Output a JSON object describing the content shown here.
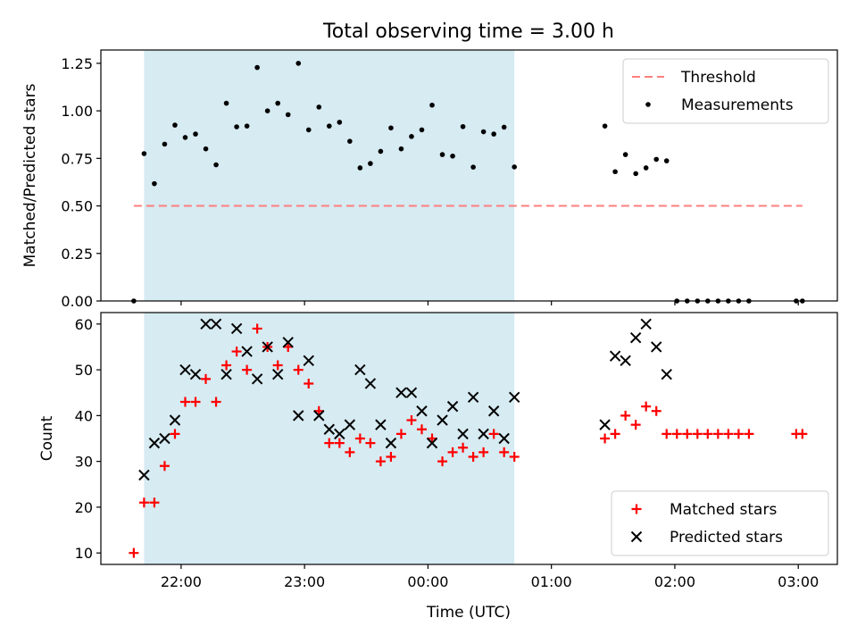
{
  "figure": {
    "title": "Total observing time = 3.00 h",
    "xlabel": "Time (UTC)",
    "x_ticks": [
      "22:00",
      "23:00",
      "00:00",
      "01:00",
      "02:00",
      "03:00"
    ],
    "x_tick_minutes": [
      0,
      60,
      120,
      180,
      240,
      300
    ],
    "x_range_minutes": [
      -39,
      319
    ],
    "shaded_span_minutes": [
      -18,
      162
    ],
    "shade_color": "#add8e6"
  },
  "chart_data": [
    {
      "type": "scatter",
      "ylabel": "Matched/Predicted stars",
      "ylim": [
        0,
        1.32
      ],
      "y_ticks": [
        0.0,
        0.25,
        0.5,
        0.75,
        1.0,
        1.25
      ],
      "y_tick_labels": [
        "0.00",
        "0.25",
        "0.50",
        "0.75",
        "1.00",
        "1.25"
      ],
      "grid": false,
      "legend_placement": "top-right",
      "threshold": {
        "name": "Threshold",
        "y": 0.5,
        "x_from": -23,
        "x_to": 302,
        "color": "#ff7f7f"
      },
      "series": [
        {
          "name": "Measurements",
          "color": "#000000",
          "points": [
            [
              -23,
              0.0
            ],
            [
              -18,
              0.775
            ],
            [
              -13,
              0.617
            ],
            [
              -8,
              0.825
            ],
            [
              -3,
              0.925
            ],
            [
              2,
              0.86
            ],
            [
              7,
              0.878
            ],
            [
              12,
              0.8
            ],
            [
              17,
              0.716
            ],
            [
              22,
              1.04
            ],
            [
              27,
              0.916
            ],
            [
              32,
              0.92
            ],
            [
              37,
              1.228
            ],
            [
              42,
              1.0
            ],
            [
              47,
              1.04
            ],
            [
              52,
              0.98
            ],
            [
              57,
              1.25
            ],
            [
              62,
              0.9
            ],
            [
              67,
              1.02
            ],
            [
              72,
              0.92
            ],
            [
              77,
              0.94
            ],
            [
              82,
              0.84
            ],
            [
              87,
              0.7
            ],
            [
              92,
              0.723
            ],
            [
              97,
              0.787
            ],
            [
              102,
              0.91
            ],
            [
              107,
              0.8
            ],
            [
              112,
              0.865
            ],
            [
              117,
              0.9
            ],
            [
              122,
              1.03
            ],
            [
              127,
              0.77
            ],
            [
              132,
              0.762
            ],
            [
              137,
              0.917
            ],
            [
              142,
              0.704
            ],
            [
              147,
              0.89
            ],
            [
              152,
              0.878
            ],
            [
              157,
              0.914
            ],
            [
              162,
              0.705
            ],
            [
              206,
              0.92
            ],
            [
              211,
              0.68
            ],
            [
              216,
              0.77
            ],
            [
              221,
              0.67
            ],
            [
              226,
              0.7
            ],
            [
              231,
              0.745
            ],
            [
              236,
              0.737
            ],
            [
              241,
              0.0
            ],
            [
              246,
              0.0
            ],
            [
              251,
              0.0
            ],
            [
              256,
              0.0
            ],
            [
              261,
              0.0
            ],
            [
              266,
              0.0
            ],
            [
              271,
              0.0
            ],
            [
              276,
              0.0
            ],
            [
              299,
              0.0
            ],
            [
              302,
              0.0
            ]
          ]
        }
      ]
    },
    {
      "type": "scatter",
      "ylabel": "Count",
      "ylim": [
        7.5,
        62.5
      ],
      "y_ticks": [
        10,
        20,
        30,
        40,
        50,
        60
      ],
      "y_tick_labels": [
        "10",
        "20",
        "30",
        "40",
        "50",
        "60"
      ],
      "grid": false,
      "legend_placement": "bottom-right",
      "series": [
        {
          "name": "Matched stars",
          "marker": "plus",
          "color": "#ff0000",
          "points": [
            [
              -23,
              10
            ],
            [
              -18,
              21
            ],
            [
              -13,
              21
            ],
            [
              -8,
              29
            ],
            [
              -3,
              36
            ],
            [
              2,
              43
            ],
            [
              7,
              43
            ],
            [
              12,
              48
            ],
            [
              17,
              43
            ],
            [
              22,
              51
            ],
            [
              27,
              54
            ],
            [
              32,
              50
            ],
            [
              37,
              59
            ],
            [
              42,
              55
            ],
            [
              47,
              51
            ],
            [
              52,
              55
            ],
            [
              57,
              50
            ],
            [
              62,
              47
            ],
            [
              67,
              41
            ],
            [
              72,
              34
            ],
            [
              77,
              34
            ],
            [
              82,
              32
            ],
            [
              87,
              35
            ],
            [
              92,
              34
            ],
            [
              97,
              30
            ],
            [
              102,
              31
            ],
            [
              107,
              36
            ],
            [
              112,
              39
            ],
            [
              117,
              37
            ],
            [
              122,
              35
            ],
            [
              127,
              30
            ],
            [
              132,
              32
            ],
            [
              137,
              33
            ],
            [
              142,
              31
            ],
            [
              147,
              32
            ],
            [
              152,
              36
            ],
            [
              157,
              32
            ],
            [
              162,
              31
            ],
            [
              206,
              35
            ],
            [
              211,
              36
            ],
            [
              216,
              40
            ],
            [
              221,
              38
            ],
            [
              226,
              42
            ],
            [
              231,
              41
            ],
            [
              236,
              36
            ],
            [
              241,
              36
            ],
            [
              246,
              36
            ],
            [
              251,
              36
            ],
            [
              256,
              36
            ],
            [
              261,
              36
            ],
            [
              266,
              36
            ],
            [
              271,
              36
            ],
            [
              276,
              36
            ],
            [
              299,
              36
            ],
            [
              302,
              36
            ]
          ]
        },
        {
          "name": "Predicted stars",
          "marker": "x",
          "color": "#000000",
          "points": [
            [
              -18,
              27
            ],
            [
              -13,
              34
            ],
            [
              -8,
              35
            ],
            [
              -3,
              39
            ],
            [
              2,
              50
            ],
            [
              7,
              49
            ],
            [
              12,
              60
            ],
            [
              17,
              60
            ],
            [
              22,
              49
            ],
            [
              27,
              59
            ],
            [
              32,
              54
            ],
            [
              37,
              48
            ],
            [
              42,
              55
            ],
            [
              47,
              49
            ],
            [
              52,
              56
            ],
            [
              57,
              40
            ],
            [
              62,
              52
            ],
            [
              67,
              40
            ],
            [
              72,
              37
            ],
            [
              77,
              36
            ],
            [
              82,
              38
            ],
            [
              87,
              50
            ],
            [
              92,
              47
            ],
            [
              97,
              38
            ],
            [
              102,
              34
            ],
            [
              107,
              45
            ],
            [
              112,
              45
            ],
            [
              117,
              41
            ],
            [
              122,
              34
            ],
            [
              127,
              39
            ],
            [
              132,
              42
            ],
            [
              137,
              36
            ],
            [
              142,
              44
            ],
            [
              147,
              36
            ],
            [
              152,
              41
            ],
            [
              157,
              35
            ],
            [
              162,
              44
            ],
            [
              206,
              38
            ],
            [
              211,
              53
            ],
            [
              216,
              52
            ],
            [
              221,
              57
            ],
            [
              226,
              60
            ],
            [
              231,
              55
            ],
            [
              236,
              49
            ]
          ]
        }
      ]
    }
  ]
}
